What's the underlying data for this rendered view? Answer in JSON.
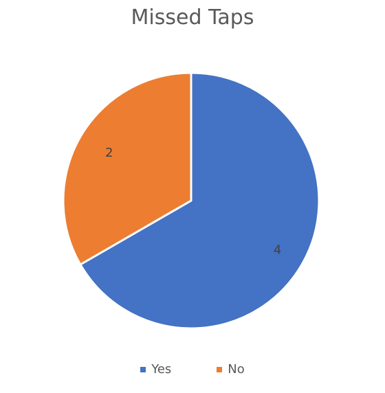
{
  "chart_data": {
    "type": "pie",
    "title": "Missed Taps",
    "categories": [
      "Yes",
      "No"
    ],
    "values": [
      4,
      2
    ],
    "data_labels": [
      "4",
      "2"
    ],
    "colors": [
      "#4472C4",
      "#ED7D31"
    ],
    "legend_placement": "bottom"
  }
}
